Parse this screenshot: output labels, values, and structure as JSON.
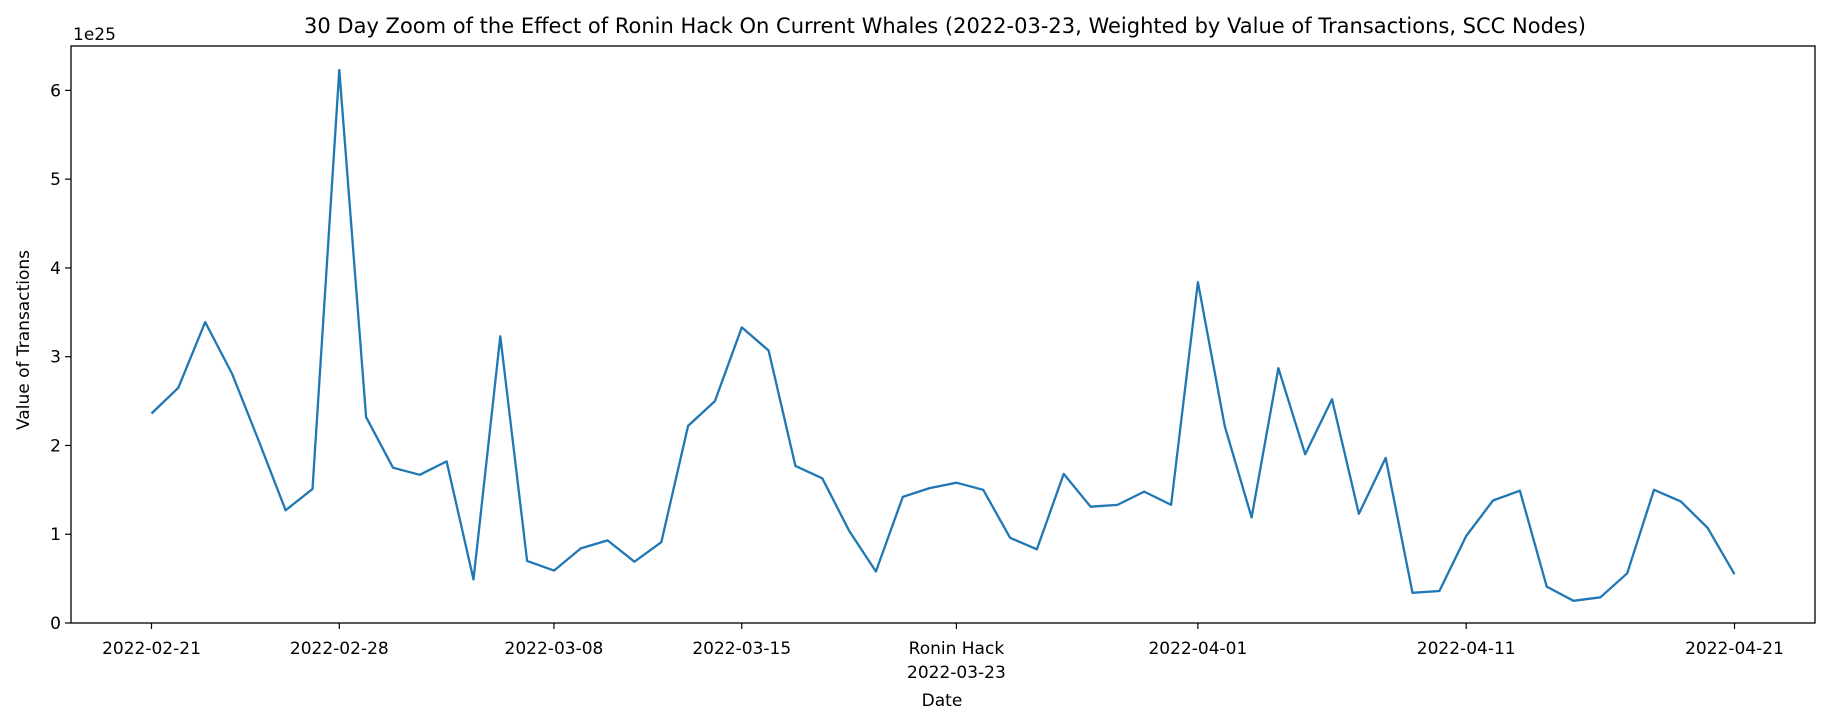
{
  "chart_data": {
    "type": "line",
    "title": "30 Day Zoom of the Effect of Ronin Hack On Current Whales (2022-03-23, Weighted by Value of Transactions, SCC Nodes)",
    "xlabel": "Date",
    "ylabel": "Value of Transactions",
    "y_offset_label": "1e25",
    "y_scale": 1e+25,
    "ylim": [
      0,
      6.5
    ],
    "grid": false,
    "line_color": "#1f77b4",
    "event": {
      "label": "Ronin Hack",
      "date": "2022-03-23"
    },
    "y_ticks": [
      0,
      1,
      2,
      3,
      4,
      5,
      6
    ],
    "x_ticks": [
      "2022-02-21",
      "2022-02-28",
      "2022-03-08",
      "2022-03-15",
      "2022-03-23",
      "2022-04-01",
      "2022-04-11",
      "2022-04-21"
    ],
    "x_tick_labels": [
      "2022-02-21",
      "2022-02-28",
      "2022-03-08",
      "2022-03-15",
      "Ronin Hack",
      "2022-04-01",
      "2022-04-11",
      "2022-04-21"
    ],
    "xlim": [
      "2022-02-18",
      "2022-04-24"
    ],
    "series": [
      {
        "x": [
          "2022-02-21",
          "2022-02-22",
          "2022-02-23",
          "2022-02-24",
          "2022-02-25",
          "2022-02-26",
          "2022-02-27",
          "2022-02-28",
          "2022-03-01",
          "2022-03-02",
          "2022-03-03",
          "2022-03-04",
          "2022-03-05",
          "2022-03-06",
          "2022-03-07",
          "2022-03-08",
          "2022-03-09",
          "2022-03-10",
          "2022-03-11",
          "2022-03-12",
          "2022-03-13",
          "2022-03-14",
          "2022-03-15",
          "2022-03-16",
          "2022-03-17",
          "2022-03-18",
          "2022-03-19",
          "2022-03-20",
          "2022-03-21",
          "2022-03-22",
          "2022-03-23",
          "2022-03-24",
          "2022-03-25",
          "2022-03-26",
          "2022-03-27",
          "2022-03-28",
          "2022-03-29",
          "2022-03-30",
          "2022-03-31",
          "2022-04-01",
          "2022-04-02",
          "2022-04-03",
          "2022-04-04",
          "2022-04-05",
          "2022-04-06",
          "2022-04-07",
          "2022-04-08",
          "2022-04-09",
          "2022-04-10",
          "2022-04-11",
          "2022-04-12",
          "2022-04-13",
          "2022-04-14",
          "2022-04-15",
          "2022-04-16",
          "2022-04-17",
          "2022-04-18",
          "2022-04-19",
          "2022-04-20",
          "2022-04-21"
        ],
        "y": [
          2.36,
          2.65,
          3.39,
          2.81,
          2.05,
          1.27,
          1.51,
          6.23,
          2.32,
          1.75,
          1.67,
          1.82,
          0.49,
          3.23,
          0.7,
          0.59,
          0.84,
          0.93,
          0.69,
          0.91,
          2.22,
          2.5,
          3.33,
          3.07,
          1.77,
          1.63,
          1.04,
          0.58,
          1.42,
          1.52,
          1.58,
          1.5,
          0.96,
          0.83,
          1.68,
          1.31,
          1.33,
          1.48,
          1.33,
          3.84,
          2.22,
          1.19,
          2.87,
          1.9,
          2.52,
          1.23,
          1.86,
          0.34,
          0.36,
          0.98,
          1.38,
          1.49,
          0.41,
          0.25,
          0.29,
          0.56,
          1.5,
          1.37,
          1.07,
          0.55
        ]
      }
    ]
  }
}
